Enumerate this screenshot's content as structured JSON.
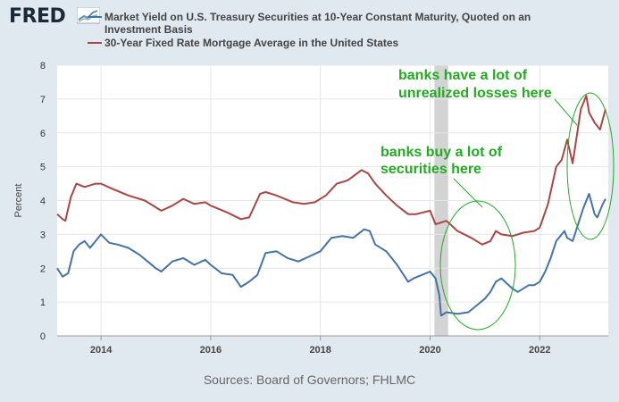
{
  "logo": {
    "text": "FRED"
  },
  "chart_data": {
    "type": "line",
    "title": "",
    "xlabel": "",
    "ylabel": "Percent",
    "ylim": [
      0,
      8
    ],
    "xlim": [
      2013.2,
      2023.25
    ],
    "yticks": [
      "0",
      "1",
      "2",
      "3",
      "4",
      "5",
      "6",
      "7",
      "8"
    ],
    "xticks": [
      "2014",
      "2016",
      "2018",
      "2020",
      "2022"
    ],
    "grid": true,
    "legend_position": "top",
    "source": "Sources: Board of Governors; FHLMC",
    "recession": {
      "start": 2020.08,
      "end": 2020.33,
      "color": "#d3d3d3"
    },
    "series": [
      {
        "name": "Market Yield on U.S. Treasury Securities at 10-Year Constant Maturity, Quoted on an Investment Basis",
        "color": "#4572a7",
        "x": [
          2013.2,
          2013.3,
          2013.4,
          2013.5,
          2013.6,
          2013.7,
          2013.8,
          2013.9,
          2014.0,
          2014.15,
          2014.3,
          2014.5,
          2014.7,
          2014.85,
          2015.0,
          2015.1,
          2015.3,
          2015.5,
          2015.7,
          2015.9,
          2016.0,
          2016.2,
          2016.4,
          2016.55,
          2016.7,
          2016.85,
          2017.0,
          2017.2,
          2017.4,
          2017.6,
          2017.8,
          2018.0,
          2018.2,
          2018.4,
          2018.6,
          2018.8,
          2018.9,
          2019.0,
          2019.2,
          2019.4,
          2019.6,
          2019.7,
          2019.85,
          2020.0,
          2020.1,
          2020.17,
          2020.2,
          2020.3,
          2020.5,
          2020.7,
          2020.85,
          2021.0,
          2021.1,
          2021.2,
          2021.3,
          2021.5,
          2021.6,
          2021.8,
          2021.9,
          2022.0,
          2022.1,
          2022.2,
          2022.3,
          2022.45,
          2022.5,
          2022.6,
          2022.7,
          2022.8,
          2022.9,
          2023.0,
          2023.05,
          2023.15,
          2023.2
        ],
        "values": [
          2.0,
          1.75,
          1.85,
          2.5,
          2.7,
          2.8,
          2.6,
          2.8,
          3.0,
          2.75,
          2.7,
          2.6,
          2.4,
          2.2,
          2.0,
          1.9,
          2.2,
          2.3,
          2.1,
          2.25,
          2.1,
          1.85,
          1.8,
          1.45,
          1.6,
          1.8,
          2.45,
          2.5,
          2.3,
          2.2,
          2.35,
          2.5,
          2.9,
          2.95,
          2.9,
          3.15,
          3.1,
          2.7,
          2.5,
          2.1,
          1.6,
          1.7,
          1.8,
          1.9,
          1.7,
          1.2,
          0.6,
          0.7,
          0.65,
          0.7,
          0.9,
          1.1,
          1.3,
          1.6,
          1.7,
          1.4,
          1.3,
          1.5,
          1.5,
          1.6,
          1.9,
          2.3,
          2.8,
          3.1,
          2.9,
          2.8,
          3.3,
          3.8,
          4.2,
          3.6,
          3.5,
          3.9,
          4.05
        ]
      },
      {
        "name": "30-Year Fixed Rate Mortgage Average in the United States",
        "color": "#aa4643",
        "x": [
          2013.2,
          2013.3,
          2013.35,
          2013.45,
          2013.55,
          2013.7,
          2013.9,
          2014.0,
          2014.2,
          2014.5,
          2014.8,
          2015.0,
          2015.1,
          2015.3,
          2015.5,
          2015.7,
          2015.9,
          2016.0,
          2016.3,
          2016.55,
          2016.7,
          2016.9,
          2017.0,
          2017.2,
          2017.5,
          2017.7,
          2017.9,
          2018.1,
          2018.3,
          2018.5,
          2018.75,
          2018.87,
          2019.0,
          2019.2,
          2019.4,
          2019.6,
          2019.75,
          2020.0,
          2020.1,
          2020.3,
          2020.5,
          2020.75,
          2020.95,
          2021.1,
          2021.2,
          2021.3,
          2021.5,
          2021.7,
          2021.9,
          2022.0,
          2022.15,
          2022.3,
          2022.4,
          2022.5,
          2022.6,
          2022.75,
          2022.85,
          2022.9,
          2023.0,
          2023.1,
          2023.2
        ],
        "values": [
          3.6,
          3.45,
          3.4,
          4.1,
          4.5,
          4.4,
          4.5,
          4.5,
          4.35,
          4.15,
          4.0,
          3.8,
          3.7,
          3.85,
          4.05,
          3.9,
          3.95,
          3.85,
          3.65,
          3.45,
          3.5,
          4.2,
          4.25,
          4.15,
          3.95,
          3.9,
          3.95,
          4.15,
          4.5,
          4.6,
          4.9,
          4.8,
          4.5,
          4.15,
          3.85,
          3.6,
          3.6,
          3.7,
          3.3,
          3.4,
          3.1,
          2.9,
          2.7,
          2.8,
          3.1,
          3.0,
          2.95,
          3.05,
          3.1,
          3.2,
          3.9,
          5.0,
          5.2,
          5.8,
          5.1,
          6.7,
          7.1,
          6.6,
          6.3,
          6.1,
          6.7
        ]
      }
    ]
  },
  "annotations": [
    {
      "text": "banks have a lot of",
      "color": "#22aa22"
    },
    {
      "text": "unrealized losses here",
      "color": "#22aa22"
    },
    {
      "text": "banks buy a lot of",
      "color": "#22aa22"
    },
    {
      "text": "securities here",
      "color": "#22aa22"
    }
  ]
}
